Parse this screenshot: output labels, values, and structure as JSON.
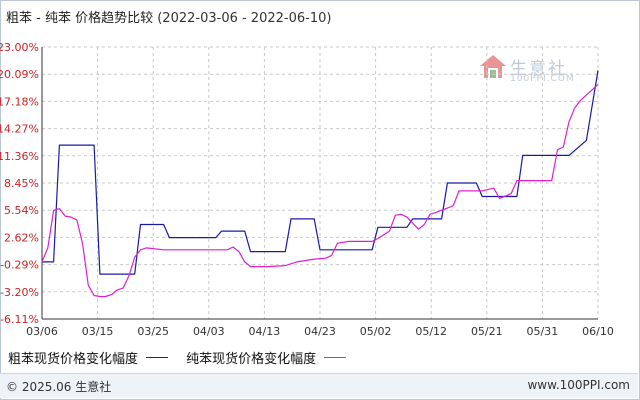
{
  "header": {
    "title": "粗苯 - 纯苯 价格趋势比较",
    "date_range": "(2022-03-06 - 2022-06-10)"
  },
  "watermark": {
    "name": "生意社",
    "url": "100PPI.COM"
  },
  "footer": {
    "copyright": "© 2025.06 生意社",
    "site": "www.100PPI.com"
  },
  "colors": {
    "series1": "#1a1aa8",
    "series2": "#e020d0",
    "ytick": "#cc2222",
    "grid": "#c9c9c9",
    "axis": "#333333"
  },
  "chart_data": {
    "type": "line",
    "title": "粗苯 - 纯苯 价格趋势比较",
    "xlabel": "",
    "ylabel": "",
    "x_ticks": [
      "03/06",
      "03/15",
      "03/25",
      "04/03",
      "04/13",
      "04/23",
      "05/02",
      "05/12",
      "05/21",
      "05/31",
      "06/10"
    ],
    "y_ticks": [
      "23.00%",
      "20.09%",
      "17.18%",
      "14.27%",
      "11.36%",
      "8.45%",
      "5.54%",
      "2.62%",
      "-0.29%",
      "-3.20%",
      "-6.11%"
    ],
    "ylim": [
      -6.11,
      23.0
    ],
    "xlim": [
      "2022-03-06",
      "2022-06-10"
    ],
    "grid": true,
    "legend_position": "bottom",
    "series": [
      {
        "name": "粗苯现货价格变化幅度",
        "color": "#1a1aa8",
        "points": [
          [
            "2022-03-06",
            0.0
          ],
          [
            "2022-03-08",
            0.0
          ],
          [
            "2022-03-09",
            12.5
          ],
          [
            "2022-03-15",
            12.5
          ],
          [
            "2022-03-16",
            -1.3
          ],
          [
            "2022-03-22",
            -1.3
          ],
          [
            "2022-03-23",
            4.0
          ],
          [
            "2022-03-27",
            4.0
          ],
          [
            "2022-03-28",
            2.6
          ],
          [
            "2022-04-05",
            2.6
          ],
          [
            "2022-04-06",
            3.3
          ],
          [
            "2022-04-10",
            3.3
          ],
          [
            "2022-04-11",
            1.1
          ],
          [
            "2022-04-17",
            1.1
          ],
          [
            "2022-04-18",
            4.6
          ],
          [
            "2022-04-22",
            4.6
          ],
          [
            "2022-04-23",
            1.3
          ],
          [
            "2022-05-02",
            1.3
          ],
          [
            "2022-05-03",
            3.7
          ],
          [
            "2022-05-08",
            3.7
          ],
          [
            "2022-05-09",
            4.6
          ],
          [
            "2022-05-14",
            4.6
          ],
          [
            "2022-05-15",
            8.45
          ],
          [
            "2022-05-20",
            8.45
          ],
          [
            "2022-05-21",
            7.0
          ],
          [
            "2022-05-27",
            7.0
          ],
          [
            "2022-05-28",
            11.4
          ],
          [
            "2022-06-05",
            11.4
          ],
          [
            "2022-06-08",
            13.0
          ],
          [
            "2022-06-10",
            20.5
          ]
        ]
      },
      {
        "name": "纯苯现货价格变化幅度",
        "color": "#e020d0",
        "points": [
          [
            "2022-03-06",
            0.0
          ],
          [
            "2022-03-07",
            1.5
          ],
          [
            "2022-03-08",
            5.5
          ],
          [
            "2022-03-09",
            5.7
          ],
          [
            "2022-03-10",
            4.9
          ],
          [
            "2022-03-11",
            4.8
          ],
          [
            "2022-03-12",
            4.5
          ],
          [
            "2022-03-13",
            2.0
          ],
          [
            "2022-03-14",
            -2.5
          ],
          [
            "2022-03-15",
            -3.6
          ],
          [
            "2022-03-16",
            -3.7
          ],
          [
            "2022-03-17",
            -3.7
          ],
          [
            "2022-03-18",
            -3.5
          ],
          [
            "2022-03-19",
            -3.0
          ],
          [
            "2022-03-20",
            -2.8
          ],
          [
            "2022-03-21",
            -1.5
          ],
          [
            "2022-03-22",
            0.5
          ],
          [
            "2022-03-23",
            1.3
          ],
          [
            "2022-03-24",
            1.5
          ],
          [
            "2022-03-27",
            1.3
          ],
          [
            "2022-04-03",
            1.3
          ],
          [
            "2022-04-07",
            1.3
          ],
          [
            "2022-04-08",
            1.6
          ],
          [
            "2022-04-09",
            1.1
          ],
          [
            "2022-04-10",
            0.0
          ],
          [
            "2022-04-11",
            -0.5
          ],
          [
            "2022-04-14",
            -0.5
          ],
          [
            "2022-04-17",
            -0.4
          ],
          [
            "2022-04-19",
            0.0
          ],
          [
            "2022-04-22",
            0.3
          ],
          [
            "2022-04-24",
            0.4
          ],
          [
            "2022-04-25",
            0.7
          ],
          [
            "2022-04-26",
            2.0
          ],
          [
            "2022-04-28",
            2.2
          ],
          [
            "2022-05-02",
            2.2
          ],
          [
            "2022-05-03",
            2.5
          ],
          [
            "2022-05-05",
            3.3
          ],
          [
            "2022-05-06",
            5.0
          ],
          [
            "2022-05-07",
            5.1
          ],
          [
            "2022-05-08",
            4.8
          ],
          [
            "2022-05-10",
            3.5
          ],
          [
            "2022-05-11",
            4.0
          ],
          [
            "2022-05-12",
            5.1
          ],
          [
            "2022-05-13",
            5.3
          ],
          [
            "2022-05-16",
            6.0
          ],
          [
            "2022-05-17",
            7.6
          ],
          [
            "2022-05-21",
            7.6
          ],
          [
            "2022-05-23",
            7.9
          ],
          [
            "2022-05-24",
            6.8
          ],
          [
            "2022-05-26",
            7.3
          ],
          [
            "2022-05-27",
            8.7
          ],
          [
            "2022-05-31",
            8.7
          ],
          [
            "2022-06-02",
            8.7
          ],
          [
            "2022-06-03",
            12.0
          ],
          [
            "2022-06-04",
            12.3
          ],
          [
            "2022-06-05",
            15.0
          ],
          [
            "2022-06-06",
            16.5
          ],
          [
            "2022-06-07",
            17.3
          ],
          [
            "2022-06-10",
            19.0
          ]
        ]
      }
    ]
  }
}
